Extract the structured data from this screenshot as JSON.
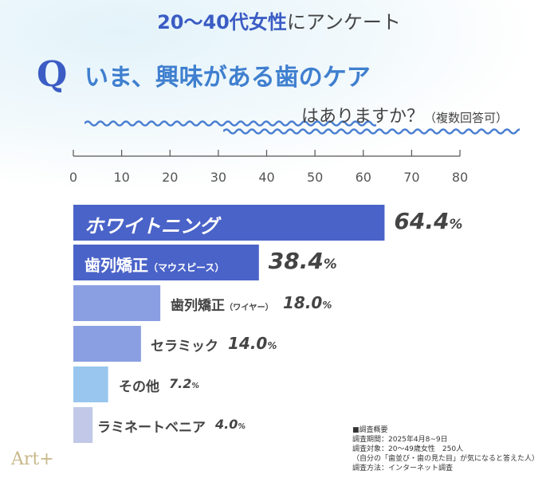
{
  "header": {
    "group": "20〜40代女性",
    "suffix": "にアンケート"
  },
  "question": {
    "mark": "Q",
    "line1": "いま、興味がある歯のケア",
    "line2": "はありますか？",
    "note": "（複数回答可）"
  },
  "chart_data": {
    "type": "bar",
    "orientation": "horizontal",
    "xlim": [
      0,
      80
    ],
    "ticks": [
      0,
      10,
      20,
      30,
      40,
      50,
      60,
      70,
      80
    ],
    "categories": [
      "ホワイトニング",
      "歯列矯正（マウスピース）",
      "歯列矯正（ワイヤー）",
      "セラミック",
      "その他",
      "ラミネートベニア"
    ],
    "values": [
      64.4,
      38.4,
      18.0,
      14.0,
      7.2,
      4.0
    ],
    "value_labels": [
      "64.4",
      "38.4",
      "18.0",
      "14.0",
      "7.2",
      "4.0"
    ],
    "unit": "%",
    "colors": [
      "#4a63c8",
      "#4a63c8",
      "#8a9fe2",
      "#8a9fe2",
      "#98c6ee",
      "#c2c9e8"
    ]
  },
  "survey": {
    "lines": [
      "■調査概要",
      "調査期間：2025年4月8~9日",
      "調査対象：20〜49歳女性　250人",
      "（自分の「歯並び・歯の見た目」が気になると答えた人）",
      "調査方法：インターネット調査"
    ]
  },
  "logo": "Art+"
}
